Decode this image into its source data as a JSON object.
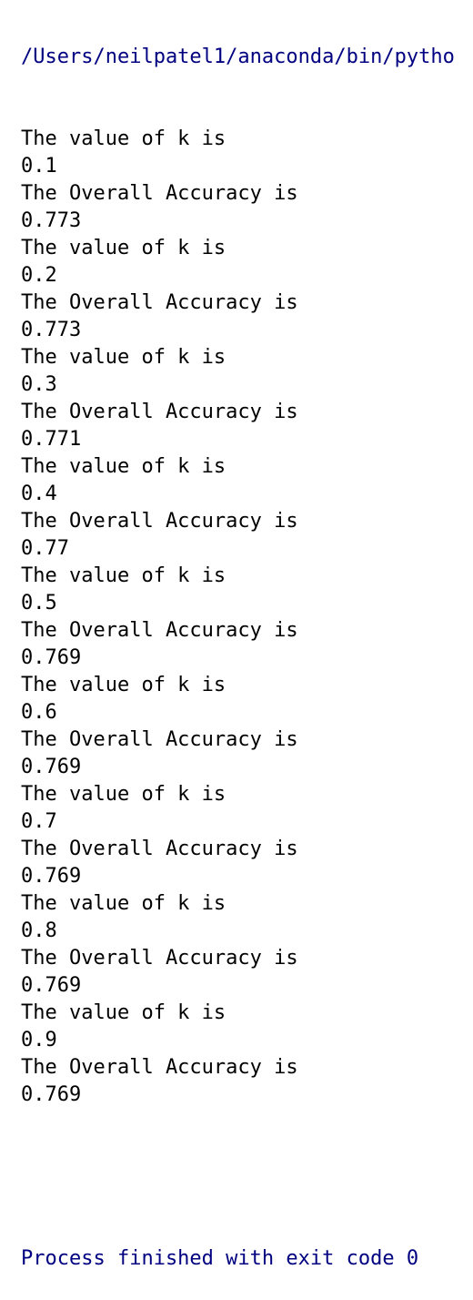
{
  "console": {
    "command_line": "/Users/neilpatel1/anaconda/bin/pytho",
    "output_lines": [
      "The value of k is",
      "0.1",
      "The Overall Accuracy is",
      "0.773",
      "The value of k is",
      "0.2",
      "The Overall Accuracy is",
      "0.773",
      "The value of k is",
      "0.3",
      "The Overall Accuracy is",
      "0.771",
      "The value of k is",
      "0.4",
      "The Overall Accuracy is",
      "0.77",
      "The value of k is",
      "0.5",
      "The Overall Accuracy is",
      "0.769",
      "The value of k is",
      "0.6",
      "The Overall Accuracy is",
      "0.769",
      "The value of k is",
      "0.7",
      "The Overall Accuracy is",
      "0.769",
      "The value of k is",
      "0.8",
      "The Overall Accuracy is",
      "0.769",
      "The value of k is",
      "0.9",
      "The Overall Accuracy is",
      "0.769"
    ],
    "exit_message": "Process finished with exit code 0",
    "colors": {
      "output_text": "#000000",
      "system_text": "#000080",
      "background": "#ffffff"
    }
  }
}
